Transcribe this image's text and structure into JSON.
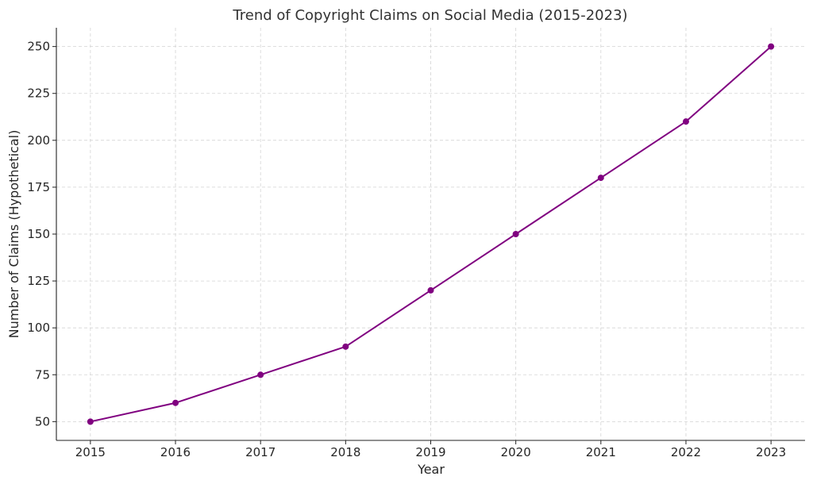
{
  "chart_data": {
    "type": "line",
    "title": "Trend of Copyright Claims on Social Media (2015-2023)",
    "xlabel": "Year",
    "ylabel": "Number of Claims (Hypothetical)",
    "x": [
      2015,
      2016,
      2017,
      2018,
      2019,
      2020,
      2021,
      2022,
      2023
    ],
    "x_tick_labels": [
      "2015",
      "2016",
      "2017",
      "2018",
      "2019",
      "2020",
      "2021",
      "2022",
      "2023"
    ],
    "series": [
      {
        "values": [
          50,
          60,
          75,
          90,
          120,
          150,
          180,
          210,
          250
        ],
        "color": "#800080",
        "marker": "circle"
      }
    ],
    "y_ticks": [
      50,
      75,
      100,
      125,
      150,
      175,
      200,
      225,
      250
    ],
    "y_tick_labels": [
      "50",
      "75",
      "100",
      "125",
      "150",
      "175",
      "200",
      "225",
      "250"
    ],
    "xlim": [
      2014.6,
      2023.4
    ],
    "ylim": [
      40,
      260
    ],
    "grid": true,
    "legend": false
  }
}
